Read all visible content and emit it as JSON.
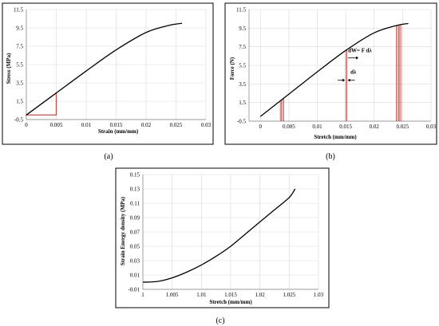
{
  "chart_data": [
    {
      "id": "a",
      "type": "line",
      "caption": "(a)",
      "xlabel": "Strain (mm/mm)",
      "ylabel": "Stress (MPa)",
      "xlim": [
        0,
        0.03
      ],
      "ylim": [
        -0.5,
        11.5
      ],
      "xticks": [
        "0",
        "0.005",
        "0.01",
        "0.015",
        "0.02",
        "0.025",
        "0.03"
      ],
      "xtick_values": [
        0,
        0.005,
        0.01,
        0.015,
        0.02,
        0.025,
        0.03
      ],
      "yticks": [
        "-0.5",
        "1.5",
        "3.5",
        "5.5",
        "7.5",
        "9.5",
        "11.5"
      ],
      "ytick_values": [
        -0.5,
        1.5,
        3.5,
        5.5,
        7.5,
        9.5,
        11.5
      ],
      "grid": true,
      "series": [
        {
          "x": [
            0,
            0.005,
            0.01,
            0.015,
            0.02,
            0.024,
            0.026
          ],
          "y": [
            0,
            2.4,
            4.8,
            7.1,
            9.0,
            9.8,
            10.0
          ]
        }
      ],
      "triangle": {
        "x": [
          0,
          0.005,
          0.005
        ],
        "y": [
          0,
          0,
          2.4
        ],
        "color": "#c0504d"
      }
    },
    {
      "id": "b",
      "type": "line",
      "caption": "(b)",
      "xlabel": "Stretch (mm/mm)",
      "ylabel": "Force (N)",
      "xlim": [
        -0.002,
        0.03
      ],
      "ylim": [
        -0.5,
        11.5
      ],
      "xticks": [
        "0",
        "0.005",
        "0.01",
        "0.015",
        "0.02",
        "0.025",
        "0.03"
      ],
      "xtick_values": [
        0,
        0.005,
        0.01,
        0.015,
        0.02,
        0.025,
        0.03
      ],
      "yticks": [
        "-0.5",
        "1.5",
        "3.5",
        "5.5",
        "7.5",
        "9.5",
        "11.5"
      ],
      "ytick_values": [
        -0.5,
        1.5,
        3.5,
        5.5,
        7.5,
        9.5,
        11.5
      ],
      "grid": true,
      "series": [
        {
          "x": [
            0,
            0.005,
            0.01,
            0.015,
            0.02,
            0.024,
            0.026
          ],
          "y": [
            0,
            2.4,
            4.8,
            7.1,
            9.0,
            9.8,
            10.0
          ]
        }
      ],
      "strips": {
        "color": "#c0504d",
        "x": [
          0.0035,
          0.0037,
          0.0039,
          0.0041,
          0.015,
          0.0152,
          0.0239,
          0.0241,
          0.0243,
          0.0245,
          0.0247
        ]
      },
      "annotations": {
        "dw": "dW= F dλ",
        "dl": "dλ"
      }
    },
    {
      "id": "c",
      "type": "line",
      "caption": "(c)",
      "xlabel": "Stretch (mm/mm)",
      "ylabel": "Strain Energy density (MPa)",
      "xlim": [
        1,
        1.03
      ],
      "ylim": [
        -0.01,
        0.15
      ],
      "xticks": [
        "1",
        "1.005",
        "1.01",
        "1.015",
        "1.02",
        "1.025",
        "1.03"
      ],
      "xtick_values": [
        1,
        1.005,
        1.01,
        1.015,
        1.02,
        1.025,
        1.03
      ],
      "yticks": [
        "-0.01",
        "0.01",
        "0.03",
        "0.05",
        "0.07",
        "0.09",
        "0.11",
        "0.13",
        "0.15"
      ],
      "ytick_values": [
        -0.01,
        0.01,
        0.03,
        0.05,
        0.07,
        0.09,
        0.11,
        0.13,
        0.15
      ],
      "grid": true,
      "series": [
        {
          "x": [
            1,
            1.0025,
            1.005,
            1.0075,
            1.01,
            1.0125,
            1.015,
            1.0175,
            1.02,
            1.0225,
            1.025,
            1.026
          ],
          "y": [
            0,
            0.001,
            0.006,
            0.014,
            0.024,
            0.036,
            0.05,
            0.067,
            0.084,
            0.101,
            0.118,
            0.13
          ]
        }
      ]
    }
  ]
}
